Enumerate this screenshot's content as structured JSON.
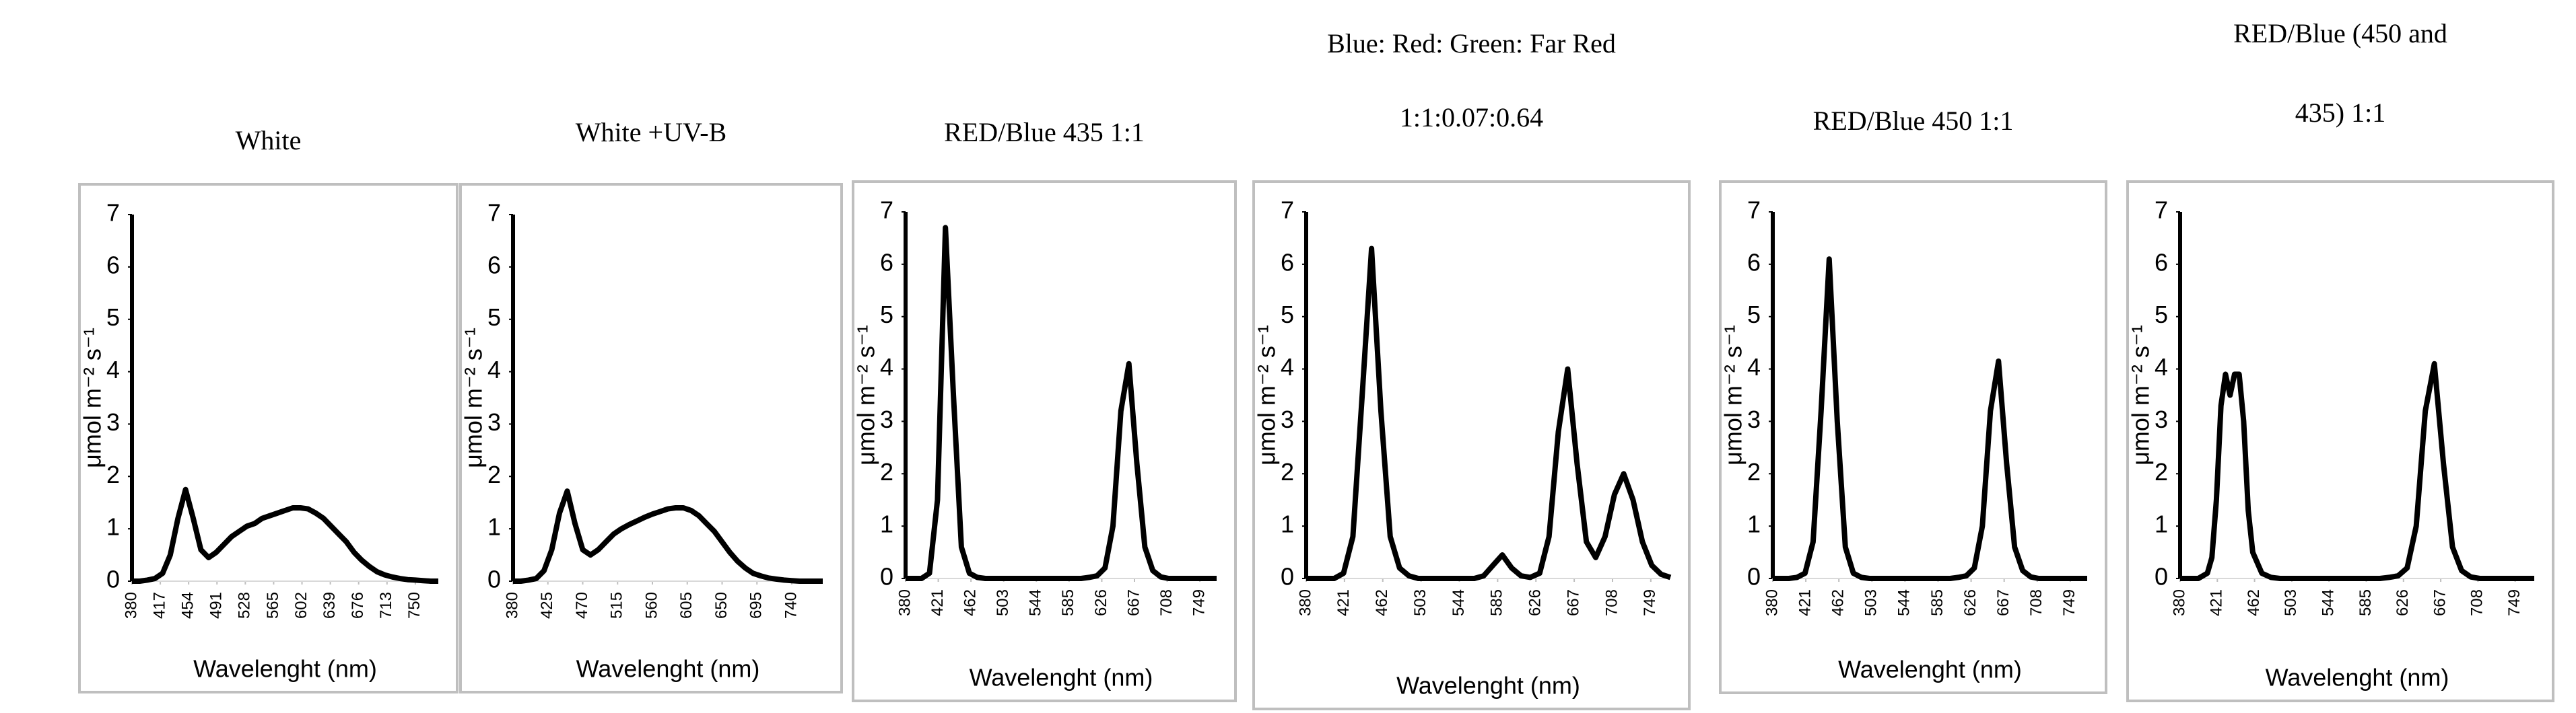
{
  "chart_data": [
    {
      "type": "line",
      "title": [
        "White"
      ],
      "xlabel": "Wavelenght (nm)",
      "ylabel": "μmol m⁻² s⁻¹",
      "color": "#000000",
      "x": [
        380,
        390,
        400,
        410,
        420,
        430,
        440,
        450,
        460,
        470,
        480,
        490,
        500,
        510,
        520,
        530,
        540,
        550,
        560,
        570,
        580,
        590,
        600,
        610,
        620,
        630,
        640,
        650,
        660,
        670,
        680,
        690,
        700,
        710,
        720,
        730,
        740,
        750,
        760,
        770,
        780
      ],
      "values": [
        0,
        0,
        0.02,
        0.05,
        0.15,
        0.5,
        1.2,
        1.75,
        1.2,
        0.6,
        0.45,
        0.55,
        0.7,
        0.85,
        0.95,
        1.05,
        1.1,
        1.2,
        1.25,
        1.3,
        1.35,
        1.4,
        1.4,
        1.38,
        1.3,
        1.2,
        1.05,
        0.9,
        0.75,
        0.55,
        0.4,
        0.28,
        0.18,
        0.12,
        0.08,
        0.05,
        0.03,
        0.02,
        0.01,
        0,
        0
      ],
      "xlim": [
        380,
        780
      ],
      "xticks": [
        380,
        417,
        454,
        491,
        528,
        565,
        602,
        639,
        676,
        713,
        750
      ],
      "ylim": [
        0,
        7
      ],
      "yticks": [
        0,
        1,
        2,
        3,
        4,
        5,
        6,
        7
      ]
    },
    {
      "type": "line",
      "title": [
        "White +UV-B"
      ],
      "xlabel": "Wavelenght (nm)",
      "ylabel": "μmol m⁻² s⁻¹",
      "color": "#000000",
      "x": [
        380,
        390,
        400,
        410,
        420,
        430,
        440,
        450,
        460,
        470,
        480,
        490,
        500,
        510,
        520,
        530,
        540,
        550,
        560,
        570,
        580,
        590,
        600,
        610,
        620,
        630,
        640,
        650,
        660,
        670,
        680,
        690,
        700,
        710,
        720,
        730,
        740,
        750,
        760,
        770,
        780
      ],
      "values": [
        0,
        0,
        0.02,
        0.05,
        0.2,
        0.6,
        1.3,
        1.72,
        1.1,
        0.6,
        0.5,
        0.6,
        0.75,
        0.9,
        1.0,
        1.08,
        1.15,
        1.22,
        1.28,
        1.33,
        1.38,
        1.4,
        1.4,
        1.35,
        1.25,
        1.1,
        0.95,
        0.75,
        0.55,
        0.38,
        0.25,
        0.15,
        0.1,
        0.06,
        0.04,
        0.02,
        0.01,
        0,
        0,
        0,
        0
      ],
      "xlim": [
        380,
        780
      ],
      "xticks": [
        380,
        425,
        470,
        515,
        560,
        605,
        650,
        695,
        740
      ],
      "ylim": [
        0,
        7
      ],
      "yticks": [
        0,
        1,
        2,
        3,
        4,
        5,
        6,
        7
      ]
    },
    {
      "type": "line",
      "title": [
        "RED/Blue 435 1:1"
      ],
      "xlabel": "Wavelenght (nm)",
      "ylabel": "μmol m⁻² s⁻¹",
      "color": "#000000",
      "x": [
        380,
        390,
        400,
        410,
        420,
        430,
        440,
        450,
        460,
        470,
        480,
        490,
        500,
        510,
        520,
        530,
        540,
        550,
        560,
        570,
        580,
        590,
        600,
        610,
        620,
        630,
        640,
        650,
        660,
        670,
        680,
        690,
        700,
        710,
        720,
        730,
        740,
        750,
        760,
        770
      ],
      "values": [
        0,
        0,
        0,
        0.1,
        1.5,
        6.7,
        3.5,
        0.6,
        0.1,
        0.02,
        0,
        0,
        0,
        0,
        0,
        0,
        0,
        0,
        0,
        0,
        0,
        0,
        0,
        0.02,
        0.05,
        0.2,
        1.0,
        3.2,
        4.1,
        2.2,
        0.6,
        0.15,
        0.03,
        0,
        0,
        0,
        0,
        0,
        0,
        0
      ],
      "xlim": [
        380,
        770
      ],
      "xticks": [
        380,
        421,
        462,
        503,
        544,
        585,
        626,
        667,
        708,
        749
      ],
      "ylim": [
        0,
        7
      ],
      "yticks": [
        0,
        1,
        2,
        3,
        4,
        5,
        6,
        7
      ]
    },
    {
      "type": "line",
      "title": [
        "Blue: Red: Green: Far Red",
        "1:1:0.07:0.64"
      ],
      "xlabel": "Wavelenght (nm)",
      "ylabel": "μmol m⁻² s⁻¹",
      "color": "#000000",
      "x": [
        380,
        390,
        400,
        410,
        420,
        430,
        440,
        450,
        460,
        470,
        480,
        490,
        500,
        510,
        520,
        530,
        540,
        550,
        560,
        570,
        580,
        590,
        600,
        610,
        620,
        630,
        640,
        650,
        660,
        670,
        680,
        690,
        700,
        710,
        720,
        730,
        740,
        750,
        760,
        770
      ],
      "values": [
        0,
        0,
        0,
        0,
        0.1,
        0.8,
        3.5,
        6.3,
        3.2,
        0.8,
        0.2,
        0.05,
        0,
        0,
        0,
        0,
        0,
        0,
        0,
        0.05,
        0.25,
        0.45,
        0.2,
        0.05,
        0.02,
        0.1,
        0.8,
        2.8,
        4.0,
        2.2,
        0.7,
        0.4,
        0.8,
        1.6,
        2.0,
        1.5,
        0.7,
        0.25,
        0.08,
        0.02
      ],
      "xlim": [
        380,
        770
      ],
      "xticks": [
        380,
        421,
        462,
        503,
        544,
        585,
        626,
        667,
        708,
        749
      ],
      "ylim": [
        0,
        7
      ],
      "yticks": [
        0,
        1,
        2,
        3,
        4,
        5,
        6,
        7
      ]
    },
    {
      "type": "line",
      "title": [
        "RED/Blue 450 1:1"
      ],
      "xlabel": "Wavelenght (nm)",
      "ylabel": "μmol m⁻² s⁻¹",
      "color": "#000000",
      "x": [
        380,
        390,
        400,
        410,
        420,
        430,
        440,
        450,
        460,
        470,
        480,
        490,
        500,
        510,
        520,
        530,
        540,
        550,
        560,
        570,
        580,
        590,
        600,
        610,
        620,
        630,
        640,
        650,
        660,
        670,
        680,
        690,
        700,
        710,
        720,
        730,
        740,
        750,
        760,
        770
      ],
      "values": [
        0,
        0,
        0,
        0.02,
        0.1,
        0.7,
        3.2,
        6.1,
        3.0,
        0.6,
        0.1,
        0.02,
        0,
        0,
        0,
        0,
        0,
        0,
        0,
        0,
        0,
        0,
        0,
        0.02,
        0.05,
        0.2,
        1.0,
        3.2,
        4.15,
        2.2,
        0.6,
        0.15,
        0.03,
        0,
        0,
        0,
        0,
        0,
        0,
        0
      ],
      "xlim": [
        380,
        770
      ],
      "xticks": [
        380,
        421,
        462,
        503,
        544,
        585,
        626,
        667,
        708,
        749
      ],
      "ylim": [
        0,
        7
      ],
      "yticks": [
        0,
        1,
        2,
        3,
        4,
        5,
        6,
        7
      ]
    },
    {
      "type": "line",
      "title": [
        "RED/Blue (450 and",
        "435) 1:1"
      ],
      "xlabel": "Wavelenght (nm)",
      "ylabel": "μmol m⁻² s⁻¹",
      "color": "#000000",
      "x": [
        380,
        390,
        400,
        410,
        415,
        420,
        425,
        430,
        435,
        440,
        445,
        450,
        455,
        460,
        470,
        480,
        490,
        500,
        510,
        520,
        530,
        540,
        550,
        560,
        570,
        580,
        590,
        600,
        610,
        620,
        630,
        640,
        650,
        660,
        670,
        680,
        690,
        700,
        710,
        720,
        730,
        740,
        750,
        760,
        770
      ],
      "values": [
        0,
        0,
        0,
        0.1,
        0.4,
        1.5,
        3.3,
        3.9,
        3.5,
        3.9,
        3.9,
        3.0,
        1.3,
        0.5,
        0.1,
        0.02,
        0,
        0,
        0,
        0,
        0,
        0,
        0,
        0,
        0,
        0,
        0,
        0,
        0.02,
        0.05,
        0.2,
        1.0,
        3.2,
        4.1,
        2.2,
        0.6,
        0.15,
        0.03,
        0,
        0,
        0,
        0,
        0,
        0,
        0
      ],
      "xlim": [
        380,
        770
      ],
      "xticks": [
        380,
        421,
        462,
        503,
        544,
        585,
        626,
        667,
        708,
        749
      ],
      "ylim": [
        0,
        7
      ],
      "yticks": [
        0,
        1,
        2,
        3,
        4,
        5,
        6,
        7
      ]
    }
  ]
}
